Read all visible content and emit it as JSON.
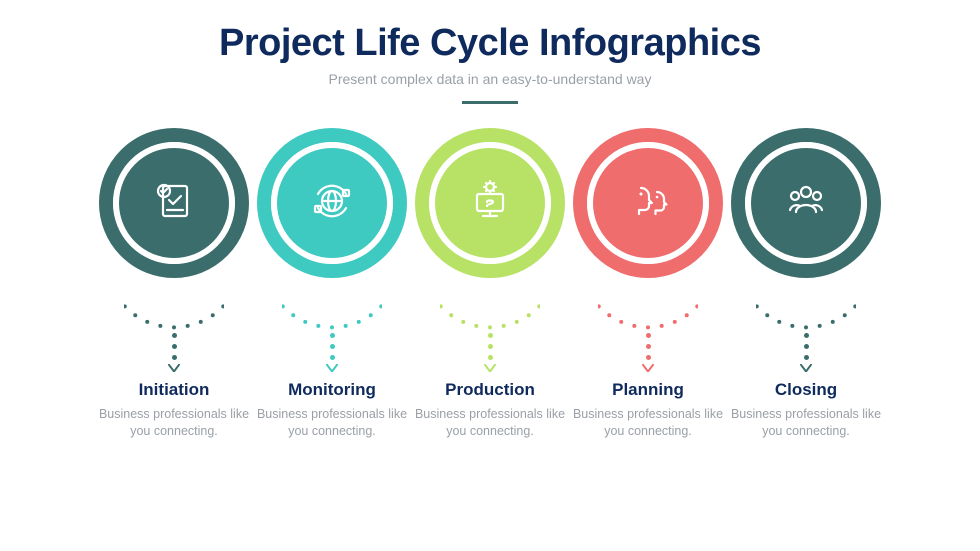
{
  "header": {
    "title": "Project Life Cycle Infographics",
    "subtitle": "Present complex data in an easy-to-understand way",
    "title_color": "#0f2a5c",
    "subtitle_color": "#9aa0a6",
    "divider_color": "#3a6d6b"
  },
  "infographic": {
    "type": "infographic",
    "background_color": "#ffffff",
    "circle_outer_diameter": 150,
    "ring_width": 14,
    "gap_width": 6,
    "icon_stroke": "#ffffff",
    "stage_title_color": "#0f2a5c",
    "stage_desc_color": "#9aa0a6",
    "stages": [
      {
        "key": "initiation",
        "label": "Initiation",
        "desc": "Business professionals like you connecting.",
        "color": "#3a6d6b",
        "icon": "document-check-icon"
      },
      {
        "key": "monitoring",
        "label": "Monitoring",
        "desc": "Business professionals like you connecting.",
        "color": "#3ec9c1",
        "icon": "globe-sync-icon"
      },
      {
        "key": "production",
        "label": "Production",
        "desc": "Business professionals like you connecting.",
        "color": "#b7e265",
        "icon": "gear-monitor-icon"
      },
      {
        "key": "planning",
        "label": "Planning",
        "desc": "Business professionals like you connecting.",
        "color": "#ef6d6d",
        "icon": "people-heads-icon"
      },
      {
        "key": "closing",
        "label": "Closing",
        "desc": "Business professionals like you connecting.",
        "color": "#3a6d6b",
        "icon": "team-group-icon"
      }
    ]
  }
}
